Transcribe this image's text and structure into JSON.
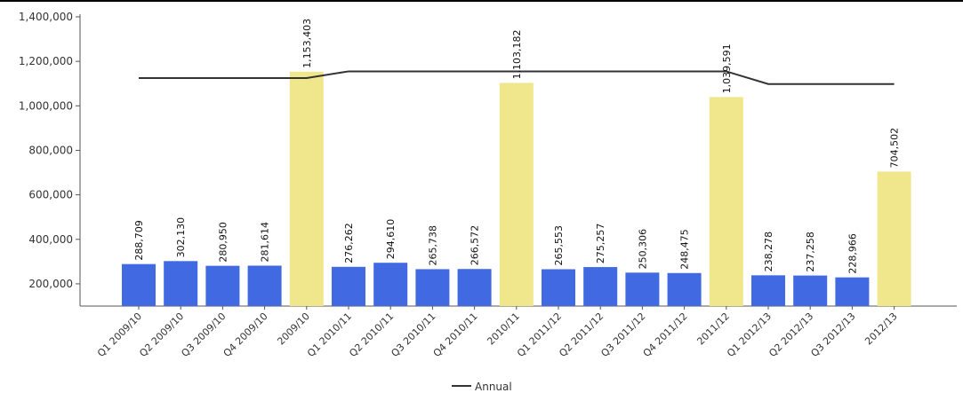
{
  "chart_data": {
    "type": "bar",
    "ylim": [
      100000,
      1400000
    ],
    "yticks": [
      200000,
      400000,
      600000,
      800000,
      1000000,
      1200000,
      1400000
    ],
    "ytick_labels": [
      "200,000",
      "400,000",
      "600,000",
      "800,000",
      "1,000,000",
      "1,200,000",
      "1,400,000"
    ],
    "grid": false,
    "legend": "bottom-center",
    "colors": {
      "quarter": "#4169e1",
      "annual": "#f0e68c",
      "line": "#333333"
    },
    "categories": [
      "Q1 2009/10",
      "Q2 2009/10",
      "Q3 2009/10",
      "Q4 2009/10",
      "2009/10",
      "Q1 2010/11",
      "Q2 2010/11",
      "Q3 2010/11",
      "Q4 2010/11",
      "2010/11",
      "Q1 2011/12",
      "Q2 2011/12",
      "Q3 2011/12",
      "Q4 2011/12",
      "2011/12",
      "Q1 2012/13",
      "Q2 2012/13",
      "Q3 2012/13",
      "2012/13"
    ],
    "bar_kind": [
      "quarter",
      "quarter",
      "quarter",
      "quarter",
      "annual",
      "quarter",
      "quarter",
      "quarter",
      "quarter",
      "annual",
      "quarter",
      "quarter",
      "quarter",
      "quarter",
      "annual",
      "quarter",
      "quarter",
      "quarter",
      "annual"
    ],
    "values": [
      288709,
      302130,
      280950,
      281614,
      1153403,
      276262,
      294610,
      265738,
      266572,
      1103182,
      265553,
      275257,
      250306,
      248475,
      1039591,
      238278,
      237258,
      228966,
      704502
    ],
    "value_labels": [
      "288,709",
      "302,130",
      "280,950",
      "281,614",
      "1,153,403",
      "276,262",
      "294,610",
      "265,738",
      "266,572",
      "1,103,182",
      "265,553",
      "275,257",
      "250,306",
      "248,475",
      "1,039,591",
      "238,278",
      "237,258",
      "228,966",
      "704,502"
    ],
    "line_series": {
      "name": "Annual",
      "values": [
        1125000,
        1125000,
        1125000,
        1125000,
        1125000,
        1155000,
        1155000,
        1155000,
        1155000,
        1155000,
        1155000,
        1155000,
        1155000,
        1155000,
        1155000,
        1098000,
        1098000,
        1098000,
        1098000
      ]
    }
  }
}
